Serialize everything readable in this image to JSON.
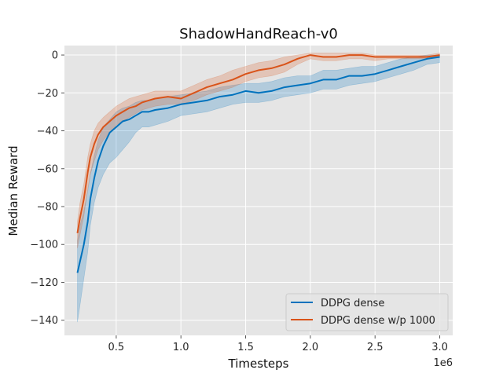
{
  "chart_data": {
    "type": "line",
    "title": "ShadowHandReach-v0",
    "xlabel": "Timesteps",
    "ylabel": "Median Reward",
    "x_multiplier_label": "1e6",
    "xlim": [
      0.1,
      3.1
    ],
    "ylim": [
      -148,
      5
    ],
    "xticks": [
      0.5,
      1.0,
      1.5,
      2.0,
      2.5,
      3.0
    ],
    "xtick_labels": [
      "0.5",
      "1.0",
      "1.5",
      "2.0",
      "2.5",
      "3.0"
    ],
    "yticks": [
      0,
      -20,
      -40,
      -60,
      -80,
      -100,
      -120,
      -140
    ],
    "ytick_labels": [
      "0",
      "−20",
      "−40",
      "−60",
      "−80",
      "−100",
      "−120",
      "−140"
    ],
    "grid": true,
    "legend_position": "lower-right",
    "series": [
      {
        "name": "DDPG dense",
        "color": "#0072bd",
        "x": [
          0.2,
          0.22,
          0.25,
          0.28,
          0.3,
          0.33,
          0.36,
          0.4,
          0.45,
          0.5,
          0.55,
          0.6,
          0.65,
          0.7,
          0.75,
          0.8,
          0.9,
          1.0,
          1.1,
          1.2,
          1.3,
          1.4,
          1.5,
          1.6,
          1.7,
          1.8,
          1.9,
          2.0,
          2.1,
          2.2,
          2.3,
          2.4,
          2.5,
          2.6,
          2.7,
          2.8,
          2.9,
          3.0
        ],
        "y": [
          -115,
          -109,
          -100,
          -88,
          -76,
          -65,
          -56,
          -48,
          -41,
          -38,
          -35,
          -34,
          -32,
          -30,
          -30,
          -29,
          -28,
          -26,
          -25,
          -24,
          -22,
          -21,
          -19,
          -20,
          -19,
          -17,
          -16,
          -15,
          -13,
          -13,
          -11,
          -11,
          -10,
          -8,
          -6,
          -4,
          -2,
          -1
        ],
        "lower": [
          -141,
          -132,
          -118,
          -104,
          -90,
          -78,
          -70,
          -63,
          -57,
          -54,
          -50,
          -46,
          -41,
          -38,
          -38,
          -37,
          -35,
          -32,
          -31,
          -30,
          -28,
          -26,
          -25,
          -25,
          -24,
          -22,
          -21,
          -20,
          -18,
          -18,
          -16,
          -15,
          -14,
          -12,
          -10,
          -8,
          -5,
          -4
        ],
        "upper": [
          -98,
          -90,
          -82,
          -72,
          -63,
          -53,
          -45,
          -38,
          -34,
          -30,
          -28,
          -27,
          -25,
          -24,
          -24,
          -23,
          -22,
          -21,
          -20,
          -19,
          -17,
          -16,
          -15,
          -15,
          -14,
          -12,
          -11,
          -11,
          -8,
          -8,
          -7,
          -6,
          -6,
          -4,
          -2,
          -1,
          0,
          0
        ]
      },
      {
        "name": "DDPG dense w/p 1000",
        "color": "#d95319",
        "x": [
          0.2,
          0.22,
          0.25,
          0.28,
          0.3,
          0.33,
          0.36,
          0.4,
          0.45,
          0.5,
          0.55,
          0.6,
          0.65,
          0.7,
          0.75,
          0.8,
          0.9,
          1.0,
          1.1,
          1.2,
          1.3,
          1.4,
          1.5,
          1.6,
          1.7,
          1.8,
          1.9,
          2.0,
          2.1,
          2.2,
          2.3,
          2.4,
          2.5,
          2.6,
          2.7,
          2.8,
          2.9,
          3.0
        ],
        "y": [
          -94,
          -86,
          -76,
          -62,
          -54,
          -47,
          -42,
          -38,
          -35,
          -32,
          -30,
          -28,
          -27,
          -25,
          -24,
          -23,
          -22,
          -23,
          -20,
          -17,
          -15,
          -13,
          -10,
          -8,
          -7,
          -5,
          -2,
          0,
          -1,
          -1,
          0,
          0,
          -1,
          -1,
          -1,
          -1,
          -1,
          0
        ],
        "lower": [
          -102,
          -95,
          -85,
          -71,
          -63,
          -56,
          -50,
          -45,
          -41,
          -37,
          -35,
          -33,
          -31,
          -29,
          -28,
          -27,
          -26,
          -26,
          -24,
          -21,
          -19,
          -17,
          -14,
          -12,
          -11,
          -9,
          -5,
          -2,
          -3,
          -3,
          -2,
          -2,
          -3,
          -2,
          -2,
          -2,
          -2,
          -1
        ],
        "upper": [
          -88,
          -78,
          -68,
          -54,
          -47,
          -40,
          -36,
          -33,
          -30,
          -27,
          -25,
          -23,
          -22,
          -21,
          -20,
          -19,
          -19,
          -19,
          -16,
          -13,
          -11,
          -8,
          -6,
          -4,
          -3,
          -1,
          0,
          1,
          1,
          1,
          1,
          1,
          0,
          0,
          0,
          0,
          0,
          1
        ]
      }
    ]
  }
}
